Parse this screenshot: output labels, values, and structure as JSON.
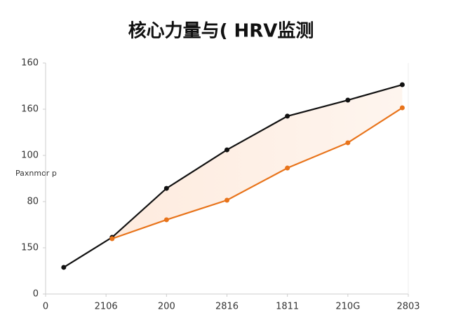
{
  "chart_data": {
    "type": "line",
    "title": "核心力量与( HRV监测",
    "y_label": "Paxnmor p",
    "xlim": [
      0,
      6
    ],
    "xticks": [
      0,
      {
        "value": 1,
        "label": "2106"
      },
      {
        "value": 2,
        "label": "200"
      },
      {
        "value": 3,
        "label": "2816"
      },
      {
        "value": 4,
        "label": "1811"
      },
      {
        "value": 5,
        "label": "210G"
      },
      {
        "value": 6,
        "label": "2803"
      }
    ],
    "ylim": [
      0,
      150
    ],
    "yticks": [
      0,
      {
        "value": 30,
        "label": "150"
      },
      {
        "value": 60,
        "label": "80"
      },
      {
        "value": 90,
        "label": "100"
      },
      {
        "value": 120,
        "label": "160"
      },
      {
        "value": 150,
        "label": "160"
      }
    ],
    "series": [
      {
        "color": "#111111",
        "x": [
          0.3,
          1.1,
          2,
          3,
          4,
          5,
          5.9
        ],
        "values": [
          17.3,
          36.8,
          68.6,
          93.6,
          115.5,
          125.9,
          135.9
        ]
      },
      {
        "color": "#e8731a",
        "x": [
          1.1,
          2,
          3,
          4,
          5,
          5.9
        ],
        "values": [
          35.9,
          48.2,
          60.9,
          81.8,
          98.2,
          120.9
        ]
      }
    ]
  }
}
